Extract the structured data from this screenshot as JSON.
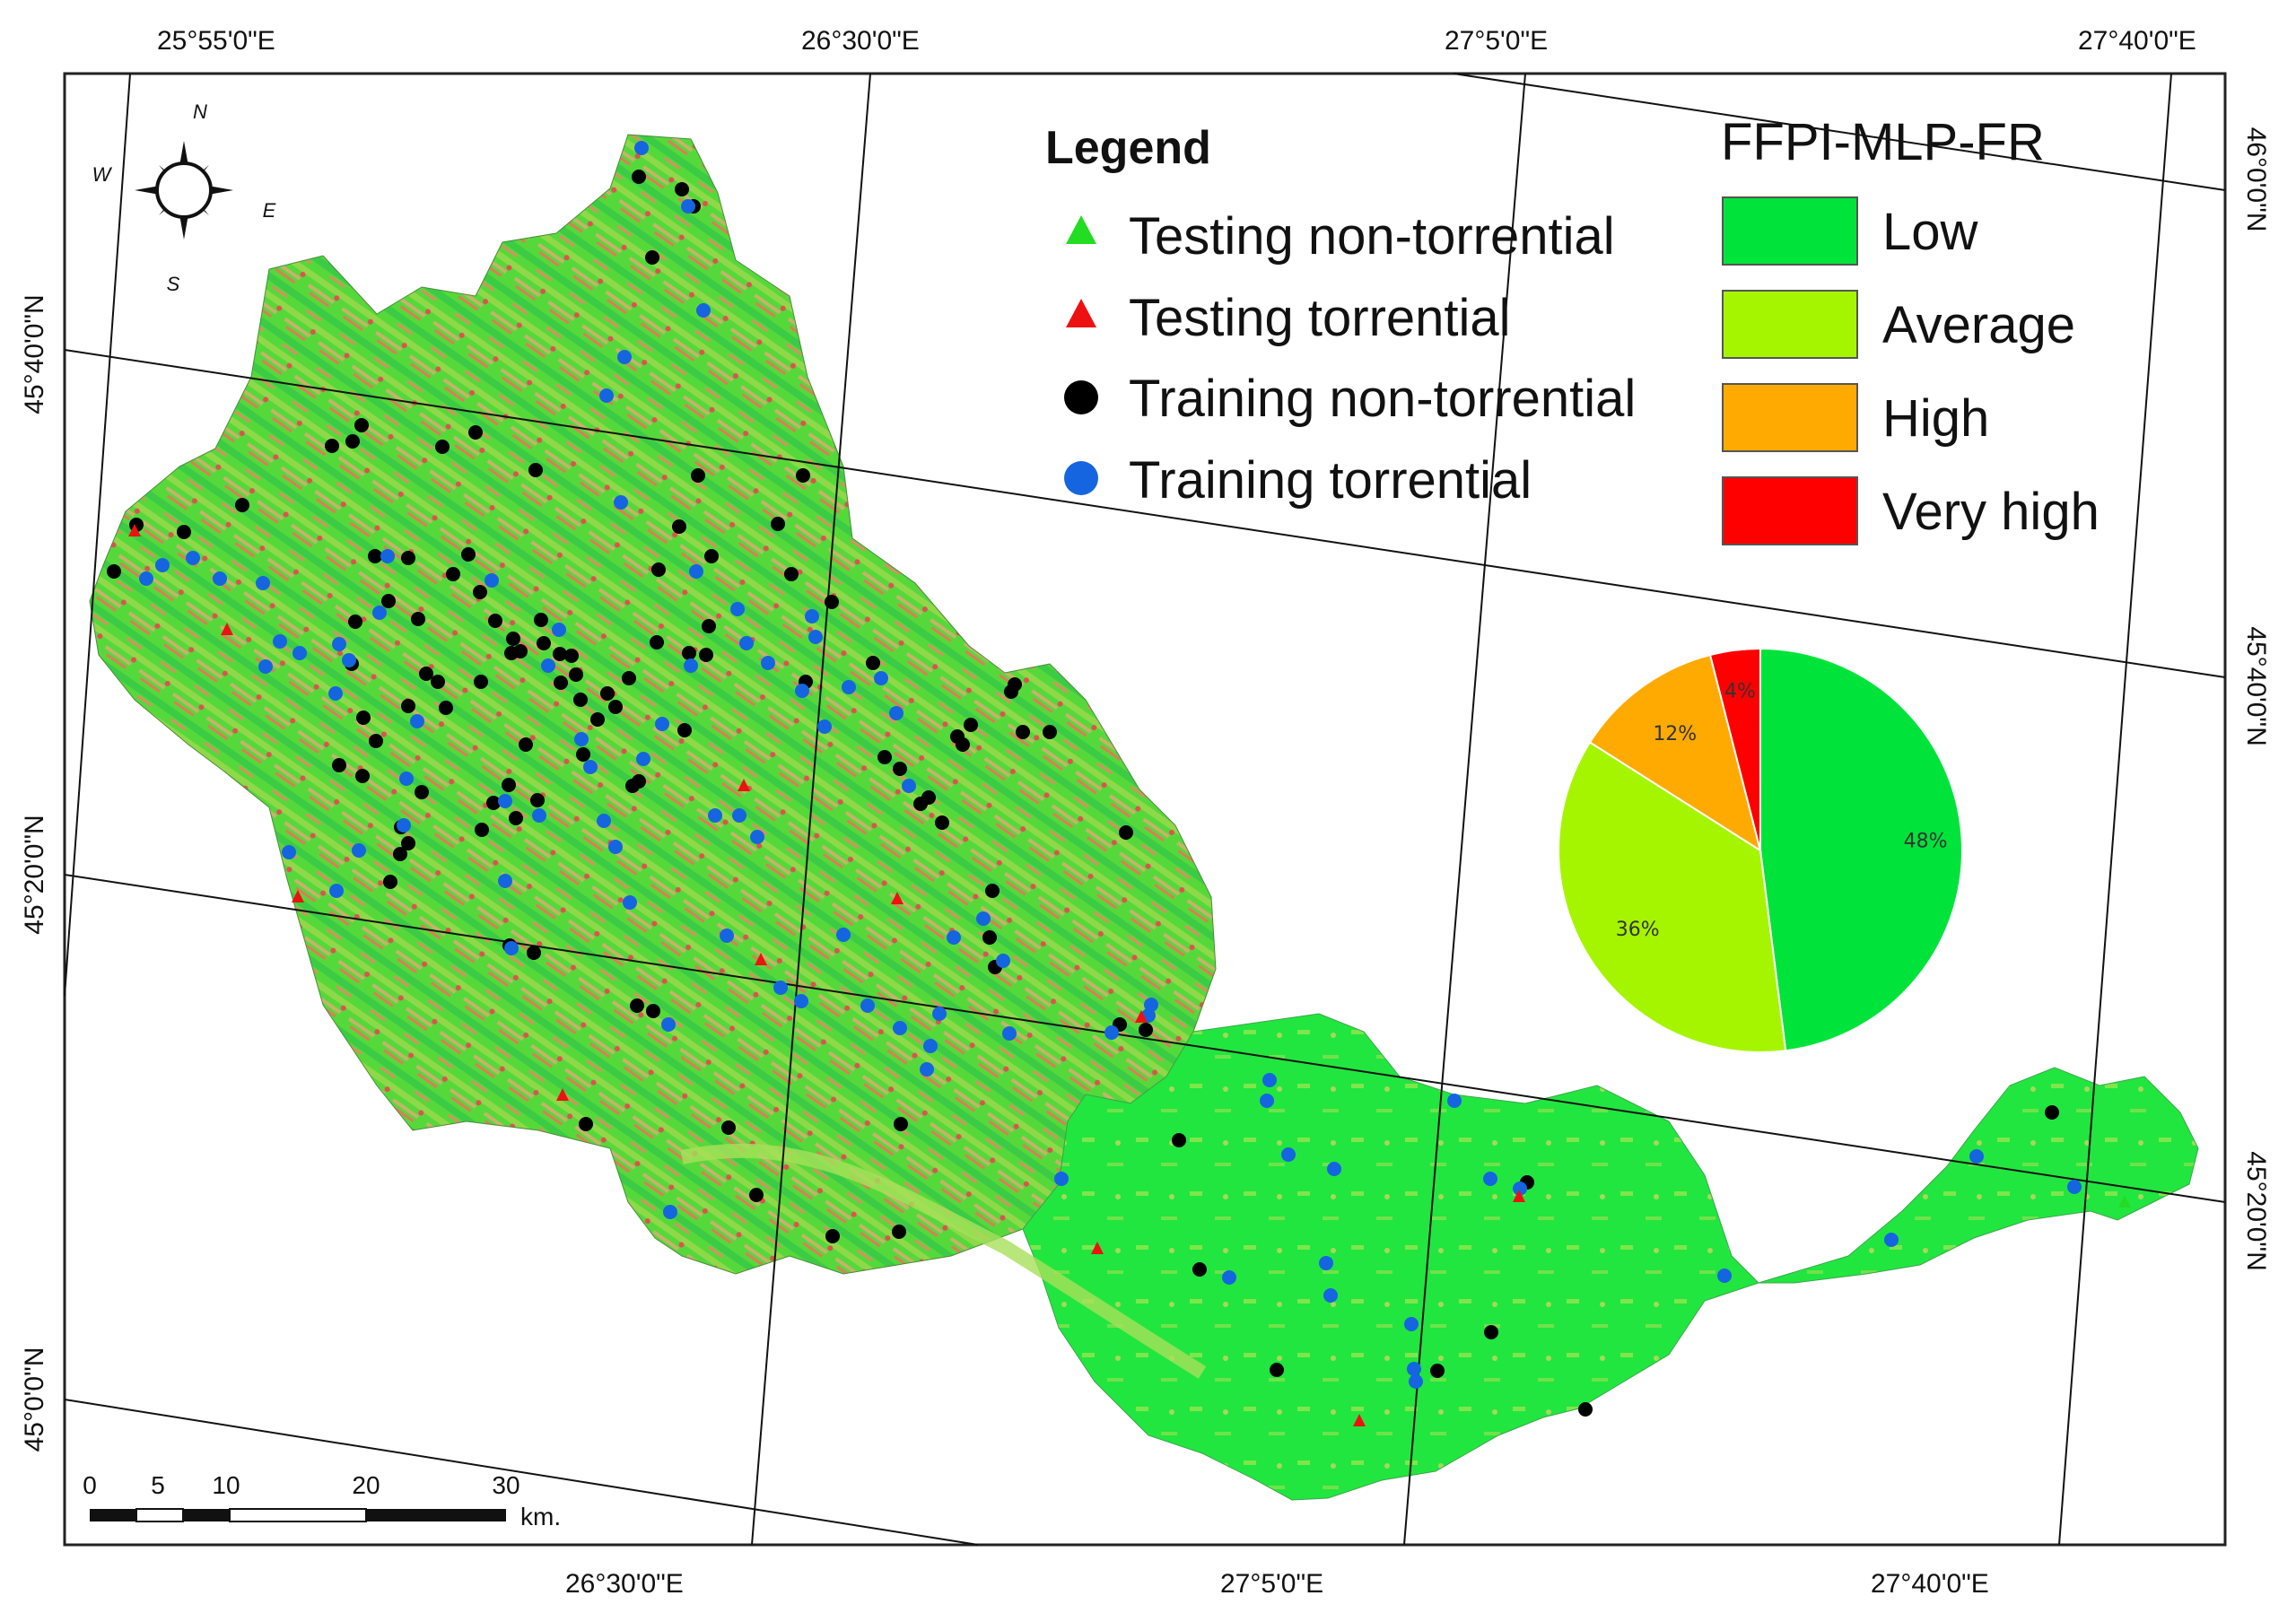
{
  "map": {
    "top_coords": [
      "25°55'0\"E",
      "26°30'0\"E",
      "27°5'0\"E",
      "27°40'0\"E"
    ],
    "bottom_coords": [
      "26°30'0\"E",
      "27°5'0\"E",
      "27°40'0\"E"
    ],
    "left_coords": [
      "45°40'0\"N",
      "45°20'0\"N",
      "45°0'0\"N"
    ],
    "right_coords": [
      "46°0'0\"N",
      "45°40'0\"N",
      "45°20'0\"N"
    ]
  },
  "compass": {
    "n": "N",
    "s": "S",
    "e": "E",
    "w": "W"
  },
  "legend": {
    "title": "Legend",
    "items": [
      {
        "label": "Testing non-torrential",
        "symbol": "triangle",
        "color": "#22dd22"
      },
      {
        "label": "Testing torrential",
        "symbol": "triangle",
        "color": "#ee1111"
      },
      {
        "label": "Training non-torrential",
        "symbol": "circle",
        "color": "#000000"
      },
      {
        "label": "Training torrential",
        "symbol": "circle",
        "color": "#1565e0"
      }
    ]
  },
  "ffpi": {
    "title": "FFPI-MLP-FR",
    "classes": [
      {
        "label": "Low",
        "color": "#00e33a"
      },
      {
        "label": "Average",
        "color": "#a6f500"
      },
      {
        "label": "High",
        "color": "#ffaa00"
      },
      {
        "label": "Very high",
        "color": "#ff0000"
      }
    ]
  },
  "chart_data": {
    "type": "pie",
    "slices": [
      {
        "label": "48%",
        "value": 48,
        "color": "#00e33a"
      },
      {
        "label": "36%",
        "value": 36,
        "color": "#a6f500"
      },
      {
        "label": "12%",
        "value": 12,
        "color": "#ffaa00"
      },
      {
        "label": "4%",
        "value": 4,
        "color": "#ff0000"
      }
    ]
  },
  "scale_bar": {
    "ticks": [
      "0",
      "5",
      "10",
      "20",
      "30"
    ],
    "unit": "km."
  }
}
